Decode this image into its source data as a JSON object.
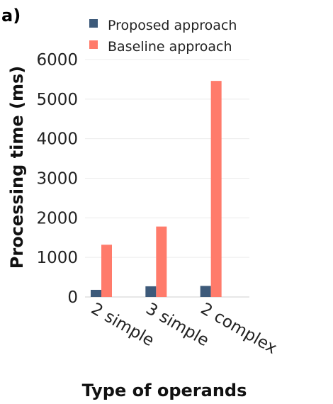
{
  "panel_label": "a)",
  "colors": {
    "proposed": "#3d5a7a",
    "baseline": "#ff7b6b",
    "grid": "#ececec",
    "text": "#222222"
  },
  "chart_data": {
    "type": "bar",
    "title": "",
    "xlabel": "Type of operands",
    "ylabel": "Processing time (ms)",
    "categories": [
      "2 simple",
      "3 simple",
      "2 complex"
    ],
    "series": [
      {
        "name": "Proposed approach",
        "values": [
          180,
          270,
          280
        ]
      },
      {
        "name": "Baseline approach",
        "values": [
          1320,
          1780,
          5460
        ]
      }
    ],
    "yticks": [
      0,
      1000,
      2000,
      3000,
      4000,
      5000,
      6000
    ],
    "ylim": [
      0,
      6000
    ],
    "grid": true,
    "legend_position": "top"
  }
}
